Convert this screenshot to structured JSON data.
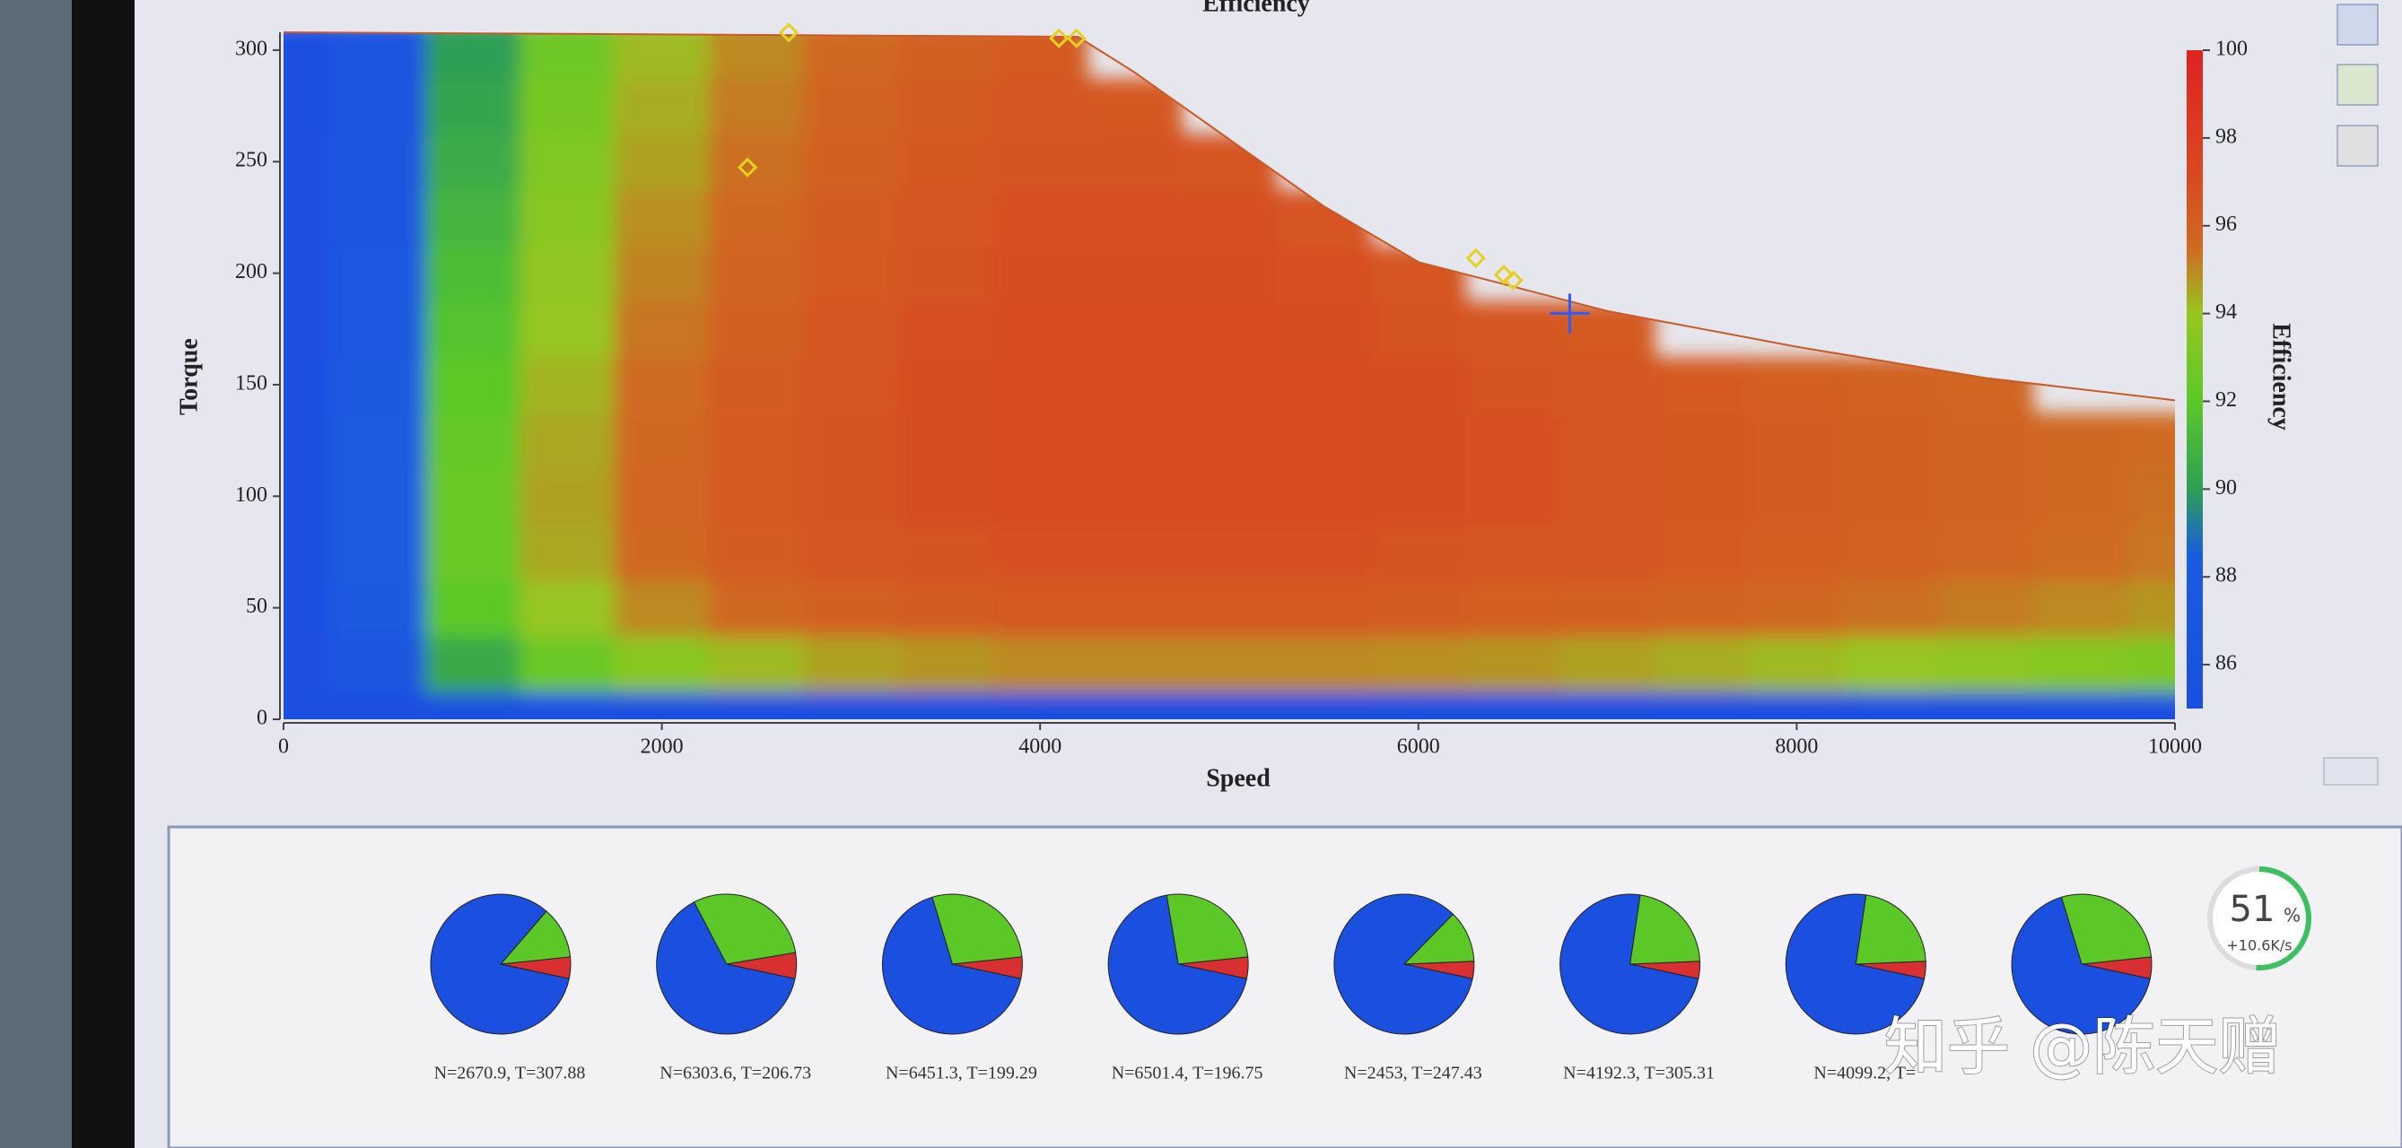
{
  "chart_data": [
    {
      "type": "heatmap",
      "title": "Efficiency",
      "x_label": "Speed",
      "y_label": "Torque",
      "colorbar_label": "Efficiency",
      "xlim": [
        0,
        10000
      ],
      "xticks": [
        0,
        2000,
        4000,
        6000,
        8000,
        10000
      ],
      "ylim": [
        0,
        308
      ],
      "yticks": [
        0,
        50,
        100,
        150,
        200,
        250,
        300
      ],
      "clim": [
        85,
        100
      ],
      "cticks": [
        86,
        88,
        90,
        92,
        94,
        96,
        98,
        100
      ],
      "colormap": [
        {
          "value": 85,
          "color": "#1a4fe0"
        },
        {
          "value": 88.5,
          "color": "#1a5ce0"
        },
        {
          "value": 90,
          "color": "#2f9f55"
        },
        {
          "value": 92,
          "color": "#5cc828"
        },
        {
          "value": 94,
          "color": "#98c620"
        },
        {
          "value": 95.5,
          "color": "#cf6a22"
        },
        {
          "value": 97,
          "color": "#d84c20"
        },
        {
          "value": 100,
          "color": "#e02222"
        }
      ],
      "efficiency": {
        "speeds": [
          0,
          500,
          1000,
          1500,
          2000,
          2500,
          3000,
          3500,
          4000,
          4500,
          5000,
          5500,
          6000,
          6500,
          7000,
          7500,
          8000,
          8500,
          9000,
          9500,
          10000
        ],
        "torques": [
          0,
          25,
          50,
          75,
          100,
          125,
          150,
          175,
          200,
          225,
          250,
          275,
          300
        ],
        "values": [
          [
            85,
            85,
            85,
            85,
            85,
            85,
            85,
            85,
            85,
            85,
            85,
            85,
            85,
            85,
            85,
            85,
            85,
            85,
            85,
            85,
            85
          ],
          [
            85,
            87,
            90.5,
            92.5,
            93.5,
            94.2,
            94.6,
            94.8,
            95,
            95,
            95,
            95,
            94.9,
            94.8,
            94.6,
            94.4,
            94.2,
            94,
            93.7,
            93.4,
            93.1
          ],
          [
            85,
            88,
            92,
            94,
            95,
            95.6,
            96,
            96.2,
            96.3,
            96.3,
            96.3,
            96.3,
            96.2,
            96.1,
            96,
            95.8,
            95.6,
            95.4,
            95.2,
            95,
            94.8
          ],
          [
            85,
            88.5,
            92.5,
            94.5,
            95.6,
            96.2,
            96.5,
            96.7,
            96.8,
            96.8,
            96.8,
            96.8,
            96.7,
            96.6,
            96.5,
            96.3,
            96.1,
            95.9,
            95.7,
            95.5,
            95.3
          ],
          [
            85,
            88.5,
            92.5,
            94.6,
            95.7,
            96.3,
            96.7,
            96.9,
            97,
            97,
            97,
            97,
            96.9,
            96.8,
            96.6,
            96.4,
            96.2,
            96,
            95.8,
            95.6,
            95.4
          ],
          [
            85,
            88.3,
            92.3,
            94.5,
            95.6,
            96.3,
            96.7,
            96.9,
            97.1,
            97.1,
            97.1,
            97,
            96.9,
            96.8,
            96.6,
            96.4,
            96.2,
            96,
            95.8,
            95.6,
            95.5
          ],
          [
            85,
            88,
            92,
            94.3,
            95.5,
            96.2,
            96.6,
            96.9,
            97.1,
            97.1,
            97.1,
            97,
            96.9,
            96.7,
            96.5,
            96.3,
            96.1,
            95.9,
            95.7,
            null,
            null
          ],
          [
            85,
            87.8,
            91.7,
            94,
            95.3,
            96,
            96.5,
            96.8,
            97,
            97,
            97,
            96.9,
            96.7,
            96.5,
            96.3,
            null,
            null,
            null,
            null,
            null,
            null
          ],
          [
            85,
            87.5,
            91.4,
            93.8,
            95.1,
            95.8,
            96.3,
            96.7,
            96.9,
            96.9,
            96.9,
            96.8,
            96.6,
            null,
            null,
            null,
            null,
            null,
            null,
            null,
            null
          ],
          [
            85,
            87.2,
            91,
            93.5,
            94.9,
            95.6,
            96.2,
            96.6,
            96.8,
            96.8,
            96.8,
            96.6,
            null,
            null,
            null,
            null,
            null,
            null,
            null,
            null,
            null
          ],
          [
            85,
            87,
            90.6,
            93.2,
            94.6,
            95.4,
            96,
            96.4,
            96.7,
            96.7,
            96.6,
            null,
            null,
            null,
            null,
            null,
            null,
            null,
            null,
            null,
            null
          ],
          [
            85,
            86.7,
            90.3,
            92.9,
            94.4,
            95.2,
            95.8,
            96.2,
            96.5,
            96.4,
            null,
            null,
            null,
            null,
            null,
            null,
            null,
            null,
            null,
            null,
            null
          ],
          [
            85,
            86.5,
            90,
            92.6,
            94.2,
            95,
            95.6,
            96,
            96.3,
            null,
            null,
            null,
            null,
            null,
            null,
            null,
            null,
            null,
            null,
            null,
            null
          ]
        ]
      },
      "torque_limit": {
        "x": [
          0,
          4200,
          4500,
          5000,
          5500,
          6000,
          7000,
          8000,
          9000,
          10000
        ],
        "values": [
          308,
          306,
          290,
          260,
          230,
          205,
          183,
          167,
          153,
          143
        ],
        "color": "#c85a28"
      },
      "operating_points": {
        "color": "#e8d020",
        "x": [
          2670.9,
          6303.6,
          6451.3,
          6501.4,
          2453,
          4192.3,
          4099.2
        ],
        "values": [
          307.88,
          206.73,
          199.29,
          196.75,
          247.43,
          305.31,
          305.31
        ]
      },
      "cursor": {
        "x": 6800,
        "value": 182,
        "color": "#2a5cff"
      }
    },
    {
      "type": "pie",
      "slice_colors": [
        "#1a4fe0",
        "#5cc828",
        "#d83030"
      ],
      "pies": [
        {
          "label": "N=2670.9, T=307.88",
          "values": [
            83,
            12,
            5
          ]
        },
        {
          "label": "N=6303.6, T=206.73",
          "values": [
            64,
            30,
            6
          ]
        },
        {
          "label": "N=6451.3, T=199.29",
          "values": [
            67,
            28,
            5
          ]
        },
        {
          "label": "N=6501.4, T=196.75",
          "values": [
            69,
            26,
            5
          ]
        },
        {
          "label": "N=2453, T=247.43",
          "values": [
            84,
            12,
            4
          ]
        },
        {
          "label": "N=4192.3, T=305.31",
          "values": [
            74,
            22,
            4
          ]
        },
        {
          "label": "N=4099.2, T=",
          "values": [
            74,
            22,
            4
          ]
        },
        {
          "values": [
            67,
            28,
            5
          ]
        }
      ]
    }
  ],
  "overlay": {
    "gauge": {
      "value": 51,
      "unit": "%",
      "rate": "+10.6K/s"
    },
    "watermark": "知乎 @陈天赠"
  }
}
